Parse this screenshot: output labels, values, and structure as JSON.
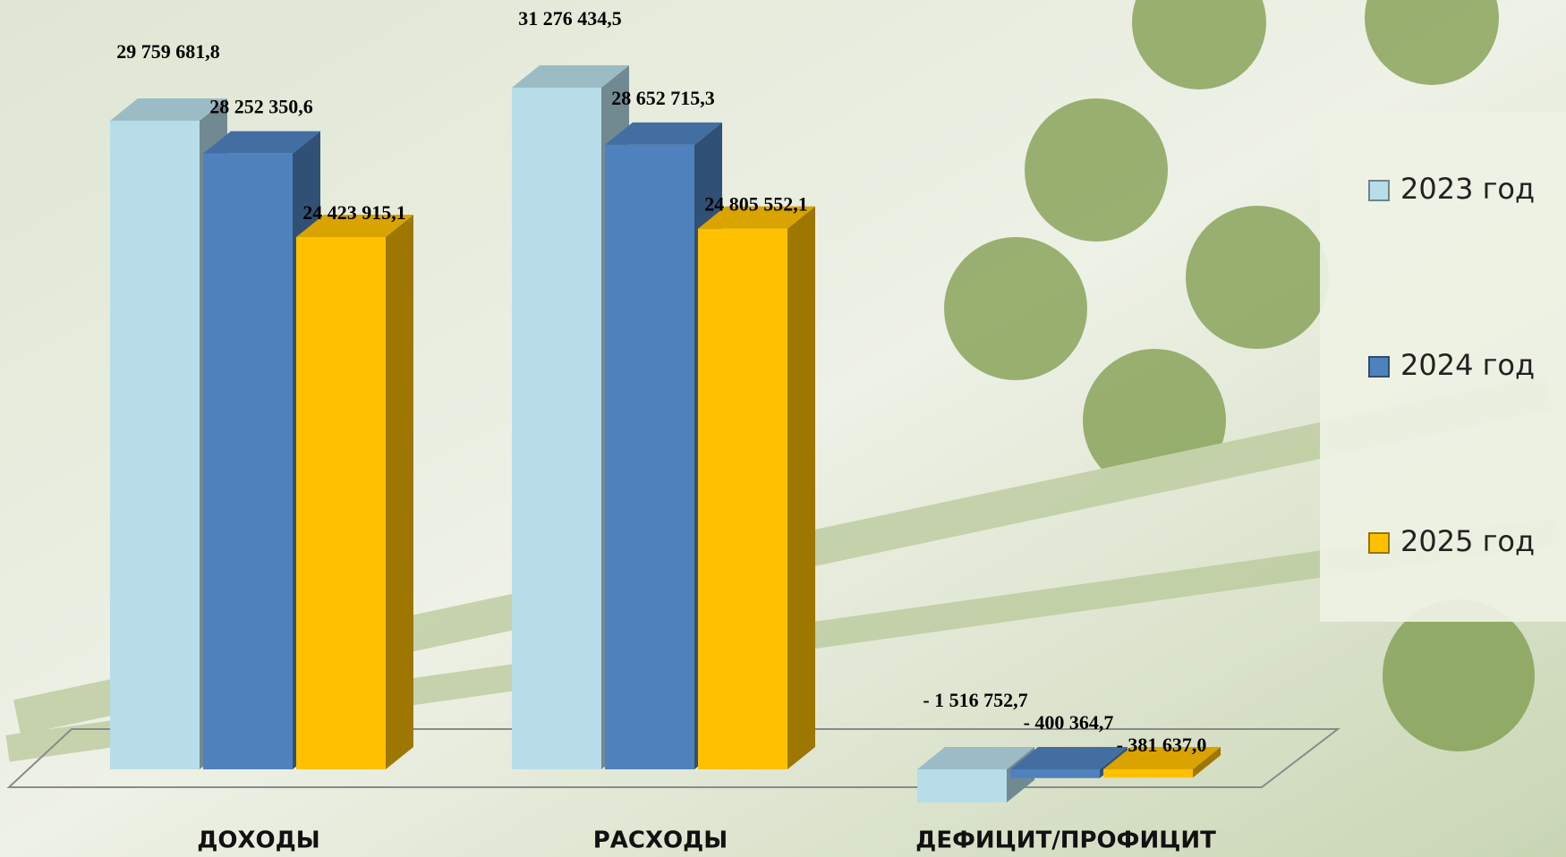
{
  "chart_data": {
    "type": "bar",
    "categories": [
      "ДОХОДЫ",
      "РАСХОДЫ",
      "ДЕФИЦИТ/ПРОФИЦИТ"
    ],
    "series": [
      {
        "name": "2023 год",
        "color": "#b7dde8",
        "values": [
          29759681.8,
          31276434.5,
          -1516752.7
        ],
        "value_labels": [
          "29 759 681,8",
          "31 276 434,5",
          "- 1 516 752,7"
        ]
      },
      {
        "name": "2024 год",
        "color": "#4f81bd",
        "values": [
          28252350.6,
          28652715.3,
          -400364.7
        ],
        "value_labels": [
          "28 252 350,6",
          "28 652 715,3",
          "-  400 364,7"
        ]
      },
      {
        "name": "2025 год",
        "color": "#ffc000",
        "values": [
          24423915.1,
          24805552.1,
          -381637.0
        ],
        "value_labels": [
          "24 423 915,1",
          "24 805 552,1",
          "-  381 637,0"
        ]
      }
    ],
    "legend": "right"
  }
}
